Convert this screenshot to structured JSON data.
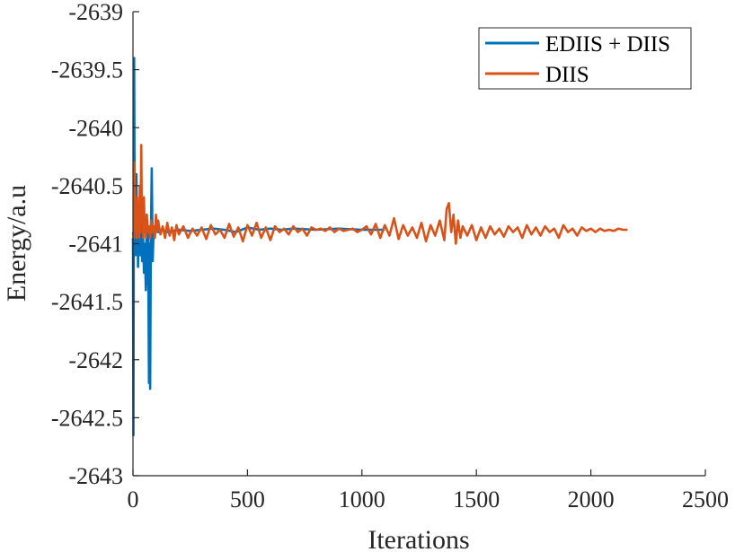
{
  "chart_data": {
    "type": "line",
    "title": "",
    "xlabel": "Iterations",
    "ylabel": "Energy/a.u",
    "xlim": [
      0,
      2500
    ],
    "ylim": [
      -2643,
      -2639
    ],
    "xticks": [
      0,
      500,
      1000,
      1500,
      2000,
      2500
    ],
    "xtick_labels": [
      "0",
      "500",
      "1000",
      "1500",
      "2000",
      "2500"
    ],
    "yticks": [
      -2639,
      -2639.5,
      -2640,
      -2640.5,
      -2641,
      -2641.5,
      -2642,
      -2642.5,
      -2643
    ],
    "ytick_labels": [
      "-2639",
      "-2639.5",
      "-2640",
      "-2640.5",
      "-2641",
      "-2641.5",
      "-2642",
      "-2642.5",
      "-2643"
    ],
    "grid": false,
    "legend_position": "top-right",
    "series": [
      {
        "name": "EDIIS + DIIS",
        "color": "#0072BD",
        "x": [
          0,
          2,
          5,
          8,
          10,
          12,
          15,
          18,
          20,
          22,
          25,
          28,
          30,
          33,
          36,
          40,
          44,
          48,
          52,
          56,
          60,
          63,
          66,
          70,
          72,
          75,
          78,
          82,
          86,
          90,
          95,
          100,
          110,
          130,
          150,
          200,
          250,
          300,
          350,
          400,
          450,
          500,
          550,
          600,
          650,
          700,
          800,
          900,
          1000,
          1100
        ],
        "y": [
          -2640.95,
          -2642.65,
          -2639.4,
          -2641.1,
          -2640.6,
          -2641.0,
          -2640.4,
          -2641.1,
          -2640.75,
          -2641.2,
          -2640.85,
          -2641.05,
          -2640.9,
          -2641.1,
          -2640.8,
          -2641.15,
          -2640.9,
          -2641.25,
          -2641.0,
          -2641.4,
          -2640.75,
          -2641.35,
          -2640.9,
          -2642.2,
          -2641.0,
          -2642.25,
          -2640.95,
          -2640.35,
          -2641.15,
          -2640.9,
          -2640.95,
          -2640.85,
          -2640.9,
          -2640.88,
          -2640.9,
          -2640.88,
          -2640.89,
          -2640.88,
          -2640.87,
          -2640.88,
          -2640.9,
          -2640.86,
          -2640.88,
          -2640.87,
          -2640.88,
          -2640.87,
          -2640.88,
          -2640.87,
          -2640.88,
          -2640.88
        ]
      },
      {
        "name": "DIIS",
        "color": "#D95319",
        "x": [
          0,
          3,
          6,
          9,
          12,
          15,
          18,
          21,
          24,
          27,
          30,
          33,
          36,
          39,
          42,
          45,
          48,
          51,
          54,
          57,
          60,
          65,
          70,
          75,
          80,
          85,
          90,
          95,
          100,
          105,
          110,
          120,
          130,
          140,
          150,
          160,
          170,
          180,
          190,
          200,
          220,
          240,
          260,
          280,
          300,
          320,
          340,
          360,
          380,
          400,
          420,
          440,
          460,
          480,
          500,
          520,
          540,
          560,
          580,
          600,
          620,
          640,
          660,
          680,
          700,
          720,
          740,
          760,
          780,
          800,
          820,
          840,
          860,
          880,
          900,
          920,
          940,
          960,
          980,
          1000,
          1020,
          1040,
          1060,
          1080,
          1100,
          1120,
          1140,
          1160,
          1180,
          1200,
          1220,
          1240,
          1260,
          1280,
          1300,
          1320,
          1340,
          1360,
          1370,
          1380,
          1390,
          1400,
          1410,
          1420,
          1430,
          1440,
          1460,
          1480,
          1500,
          1520,
          1540,
          1560,
          1580,
          1600,
          1620,
          1640,
          1660,
          1680,
          1700,
          1720,
          1740,
          1760,
          1780,
          1800,
          1820,
          1840,
          1860,
          1880,
          1900,
          1920,
          1940,
          1960,
          1980,
          2000,
          2020,
          2040,
          2060,
          2080,
          2100,
          2120,
          2140,
          2160
        ],
        "y": [
          -2640.9,
          -2640.95,
          -2640.3,
          -2640.85,
          -2640.75,
          -2640.95,
          -2640.6,
          -2640.85,
          -2640.7,
          -2640.95,
          -2640.5,
          -2640.9,
          -2640.15,
          -2640.8,
          -2640.7,
          -2640.95,
          -2640.6,
          -2640.9,
          -2640.8,
          -2640.95,
          -2640.75,
          -2640.9,
          -2640.85,
          -2640.95,
          -2640.8,
          -2640.9,
          -2640.85,
          -2640.95,
          -2640.75,
          -2640.9,
          -2640.8,
          -2640.92,
          -2640.85,
          -2640.95,
          -2640.82,
          -2640.93,
          -2640.86,
          -2640.97,
          -2640.84,
          -2640.92,
          -2640.85,
          -2640.95,
          -2640.87,
          -2640.93,
          -2640.86,
          -2640.96,
          -2640.84,
          -2640.92,
          -2640.88,
          -2640.95,
          -2640.83,
          -2640.94,
          -2640.86,
          -2640.98,
          -2640.84,
          -2640.93,
          -2640.82,
          -2640.95,
          -2640.86,
          -2640.97,
          -2640.85,
          -2640.9,
          -2640.87,
          -2640.92,
          -2640.85,
          -2640.9,
          -2640.87,
          -2640.93,
          -2640.86,
          -2640.88,
          -2640.87,
          -2640.89,
          -2640.86,
          -2640.9,
          -2640.87,
          -2640.89,
          -2640.88,
          -2640.87,
          -2640.9,
          -2640.88,
          -2640.85,
          -2640.92,
          -2640.83,
          -2640.95,
          -2640.84,
          -2640.93,
          -2640.78,
          -2640.96,
          -2640.84,
          -2640.93,
          -2640.86,
          -2640.95,
          -2640.82,
          -2640.98,
          -2640.84,
          -2640.93,
          -2640.8,
          -2640.97,
          -2640.7,
          -2640.65,
          -2640.9,
          -2640.75,
          -2641.0,
          -2640.8,
          -2640.95,
          -2640.85,
          -2640.93,
          -2640.84,
          -2640.97,
          -2640.86,
          -2640.95,
          -2640.85,
          -2640.92,
          -2640.87,
          -2640.94,
          -2640.85,
          -2640.9,
          -2640.86,
          -2640.95,
          -2640.84,
          -2640.92,
          -2640.86,
          -2640.93,
          -2640.85,
          -2640.9,
          -2640.87,
          -2640.95,
          -2640.84,
          -2640.9,
          -2640.87,
          -2640.93,
          -2640.86,
          -2640.89,
          -2640.87,
          -2640.9,
          -2640.87,
          -2640.89,
          -2640.88,
          -2640.89,
          -2640.87,
          -2640.88,
          -2640.88
        ]
      }
    ]
  }
}
